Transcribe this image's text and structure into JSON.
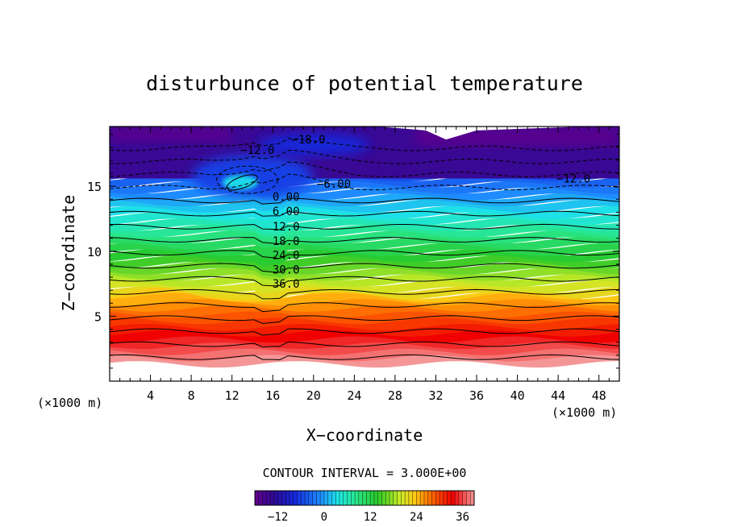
{
  "chart_data": {
    "type": "filled-contour",
    "title": "disturbunce of potential temperature",
    "xlabel": "X−coordinate",
    "ylabel": "Z−coordinate",
    "x_unit_left": "(×1000 m)",
    "x_unit_right": "(×1000 m)",
    "xlim": [
      0,
      50
    ],
    "ylim": [
      0,
      19.6
    ],
    "x_ticks": [
      4,
      8,
      12,
      16,
      20,
      24,
      28,
      32,
      36,
      40,
      44,
      48
    ],
    "x_tick_labels": [
      "4",
      "8",
      "12",
      "16",
      "20",
      "24",
      "28",
      "32",
      "36",
      "40",
      "44",
      "48"
    ],
    "y_ticks": [
      5,
      10,
      15
    ],
    "y_tick_labels": [
      "5",
      "10",
      "15"
    ],
    "value_range": [
      -18,
      39
    ],
    "contour_interval_text": "CONTOUR INTERVAL = 3.000E+00",
    "contour_labels": [
      {
        "text": "−18.0",
        "x": 19.5,
        "z": 18.6
      },
      {
        "text": "−12.0",
        "x": 14.5,
        "z": 17.8
      },
      {
        "text": "−12.0",
        "x": 45.5,
        "z": 15.6
      },
      {
        "text": "−6.00",
        "x": 22.0,
        "z": 15.2
      },
      {
        "text": "0.00",
        "x": 17.3,
        "z": 14.2
      },
      {
        "text": "6.00",
        "x": 17.3,
        "z": 13.1
      },
      {
        "text": "12.0",
        "x": 17.3,
        "z": 11.9
      },
      {
        "text": "18.0",
        "x": 17.3,
        "z": 10.8
      },
      {
        "text": "24.0",
        "x": 17.3,
        "z": 9.7
      },
      {
        "text": "30.0",
        "x": 17.3,
        "z": 8.6
      },
      {
        "text": "36.0",
        "x": 17.3,
        "z": 7.5
      }
    ],
    "colorbar": {
      "min": -18,
      "max": 39,
      "ticks": [
        -12,
        0,
        12,
        24,
        36
      ],
      "tick_labels": [
        "−12",
        "0",
        "12",
        "24",
        "36"
      ]
    }
  }
}
